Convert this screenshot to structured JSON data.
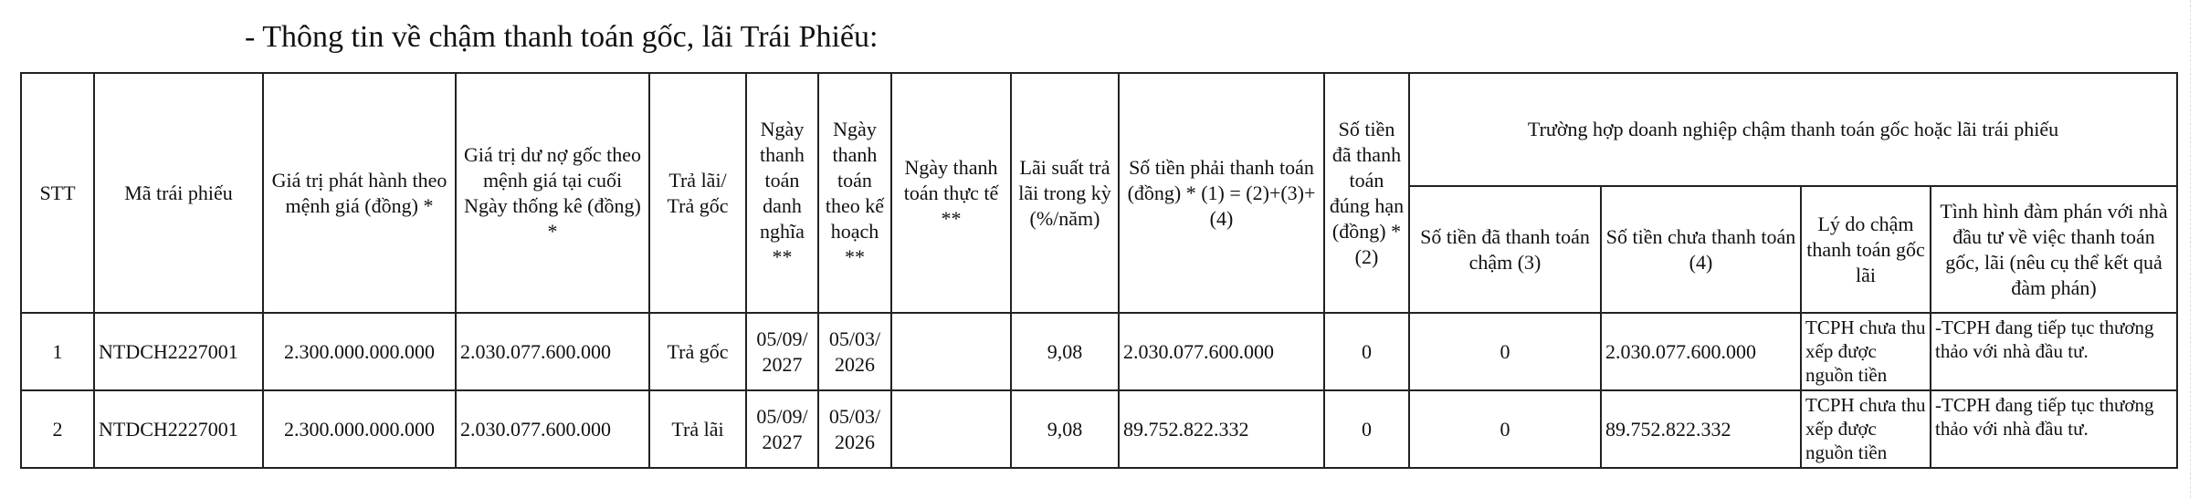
{
  "heading": "- Thông tin về chậm thanh toán gốc, lãi Trái Phiếu:",
  "table": {
    "headers": {
      "stt": "STT",
      "ma": "Mã trái phiếu",
      "gia_tri_phat_hanh": "Giá trị phát hành theo mệnh giá (đồng) *",
      "du_no": "Giá trị dư nợ gốc theo mệnh giá tại cuối Ngày thống kê (đồng) *",
      "tra": "Trả lãi/ Trả gốc",
      "ngay_danh_nghia": "Ngày thanh toán danh nghĩa **",
      "ngay_ke_hoach": "Ngày thanh toán theo kế hoạch **",
      "ngay_thuc_te": "Ngày thanh toán thực tế **",
      "lai_suat": "Lãi suất trả lãi trong kỳ (%/năm)",
      "so_tien_phai": "Số tiền phải thanh toán (đồng) * (1) = (2)+(3)+(4)",
      "so_tien_dung_han": "Số tiền đã thanh toán đúng hạn (đồng) * (2)",
      "group": "Trường hợp doanh nghiệp chậm thanh toán gốc hoặc lãi trái phiếu",
      "da_tra_cham": "Số tiền đã thanh toán chậm (3)",
      "chua_tra": "Số tiền chưa thanh toán (4)",
      "ly_do": "Lý do chậm thanh toán gốc lãi",
      "dam_phan": "Tình hình đàm phán với nhà đầu tư về việc thanh toán gốc, lãi (nêu cụ thể kết quả đàm phán)"
    },
    "rows": [
      {
        "stt": "1",
        "ma": "NTDCH2227001",
        "phat_hanh": "2.300.000.000.000",
        "du_no": "2.030.077.600.000",
        "tra": "Trả gốc",
        "ngay_dn": "05/09/ 2027",
        "ngay_kh": "05/03/ 2026",
        "ngay_tt": "",
        "lai_suat": "9,08",
        "phai_tt": "2.030.077.600.000",
        "dung_han": "0",
        "da_cham": "0",
        "chua_tt": "2.030.077.600.000",
        "ly_do": "TCPH chưa thu xếp được nguồn tiền",
        "dam_phan": "-TCPH đang tiếp tục thương thảo với nhà đầu tư."
      },
      {
        "stt": "2",
        "ma": "NTDCH2227001",
        "phat_hanh": "2.300.000.000.000",
        "du_no": "2.030.077.600.000",
        "tra": "Trả lãi",
        "ngay_dn": "05/09/ 2027",
        "ngay_kh": "05/03/ 2026",
        "ngay_tt": "",
        "lai_suat": "9,08",
        "phai_tt": "89.752.822.332",
        "dung_han": "0",
        "da_cham": "0",
        "chua_tt": "89.752.822.332",
        "ly_do": "TCPH chưa thu xếp được nguồn tiền",
        "dam_phan": "-TCPH đang tiếp tục thương thảo với nhà đầu tư."
      }
    ]
  }
}
